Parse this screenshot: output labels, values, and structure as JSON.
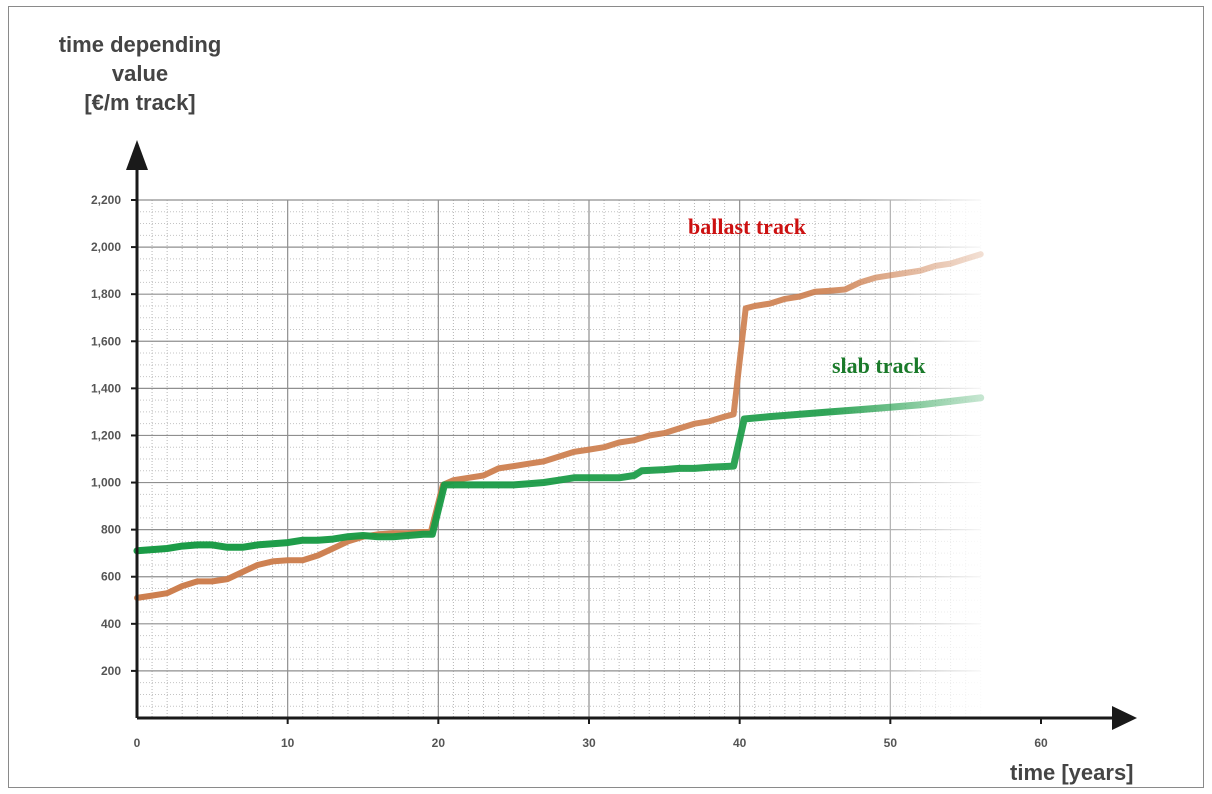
{
  "chart_data": {
    "type": "line",
    "ylabel_lines": [
      "time depending",
      "value",
      "[€/m track]"
    ],
    "xlabel": "time [years]",
    "xlim": [
      0,
      60
    ],
    "ylim": [
      0,
      2200
    ],
    "x_ticks": [
      "0",
      "10",
      "20",
      "30",
      "40",
      "50",
      "60"
    ],
    "y_ticks": [
      "200",
      "400",
      "600",
      "800",
      "1,000",
      "1,200",
      "1,400",
      "1,600",
      "1,800",
      "2,000",
      "2,200"
    ],
    "grid": true,
    "series": [
      {
        "name": "ballast track",
        "color": "#cd7f4f",
        "label_color": "#cc1111",
        "points": [
          [
            0,
            510
          ],
          [
            1,
            520
          ],
          [
            2,
            530
          ],
          [
            3,
            560
          ],
          [
            4,
            580
          ],
          [
            5,
            580
          ],
          [
            6,
            590
          ],
          [
            7,
            620
          ],
          [
            8,
            650
          ],
          [
            9,
            665
          ],
          [
            10,
            670
          ],
          [
            11,
            670
          ],
          [
            12,
            690
          ],
          [
            13,
            720
          ],
          [
            14,
            750
          ],
          [
            15,
            770
          ],
          [
            16,
            780
          ],
          [
            17,
            785
          ],
          [
            18,
            785
          ],
          [
            19,
            790
          ],
          [
            19.5,
            790
          ],
          [
            20.3,
            990
          ],
          [
            21,
            1010
          ],
          [
            22,
            1020
          ],
          [
            23,
            1030
          ],
          [
            24,
            1060
          ],
          [
            25,
            1070
          ],
          [
            26,
            1080
          ],
          [
            27,
            1090
          ],
          [
            28,
            1110
          ],
          [
            29,
            1130
          ],
          [
            30,
            1140
          ],
          [
            31,
            1150
          ],
          [
            32,
            1170
          ],
          [
            33,
            1180
          ],
          [
            34,
            1200
          ],
          [
            35,
            1210
          ],
          [
            36,
            1230
          ],
          [
            37,
            1250
          ],
          [
            38,
            1260
          ],
          [
            39,
            1280
          ],
          [
            39.6,
            1290
          ],
          [
            40.4,
            1740
          ],
          [
            41,
            1750
          ],
          [
            42,
            1760
          ],
          [
            43,
            1780
          ],
          [
            44,
            1790
          ],
          [
            45,
            1810
          ],
          [
            46,
            1815
          ],
          [
            47,
            1820
          ],
          [
            48,
            1850
          ],
          [
            49,
            1870
          ],
          [
            50,
            1880
          ],
          [
            51,
            1890
          ],
          [
            52,
            1900
          ],
          [
            53,
            1920
          ],
          [
            54,
            1930
          ],
          [
            55,
            1950
          ],
          [
            56,
            1970
          ]
        ]
      },
      {
        "name": "slab track",
        "color": "#1a9b46",
        "label_color": "#1a7a2a",
        "points": [
          [
            0,
            710
          ],
          [
            1,
            715
          ],
          [
            2,
            720
          ],
          [
            3,
            730
          ],
          [
            4,
            735
          ],
          [
            5,
            735
          ],
          [
            6,
            725
          ],
          [
            7,
            725
          ],
          [
            8,
            735
          ],
          [
            9,
            740
          ],
          [
            10,
            745
          ],
          [
            11,
            755
          ],
          [
            12,
            755
          ],
          [
            13,
            760
          ],
          [
            14,
            770
          ],
          [
            15,
            775
          ],
          [
            16,
            770
          ],
          [
            17,
            770
          ],
          [
            18,
            775
          ],
          [
            19,
            780
          ],
          [
            19.6,
            780
          ],
          [
            20.4,
            990
          ],
          [
            22,
            990
          ],
          [
            24,
            990
          ],
          [
            25,
            990
          ],
          [
            26,
            995
          ],
          [
            27,
            1000
          ],
          [
            28,
            1010
          ],
          [
            29,
            1020
          ],
          [
            30,
            1020
          ],
          [
            31,
            1020
          ],
          [
            32,
            1020
          ],
          [
            33,
            1030
          ],
          [
            33.5,
            1050
          ],
          [
            35,
            1055
          ],
          [
            36,
            1060
          ],
          [
            37,
            1060
          ],
          [
            38,
            1065
          ],
          [
            39.6,
            1070
          ],
          [
            40.3,
            1270
          ],
          [
            42,
            1280
          ],
          [
            44,
            1290
          ],
          [
            46,
            1300
          ],
          [
            48,
            1310
          ],
          [
            50,
            1320
          ],
          [
            52,
            1330
          ],
          [
            54,
            1345
          ],
          [
            56,
            1360
          ]
        ]
      }
    ]
  }
}
